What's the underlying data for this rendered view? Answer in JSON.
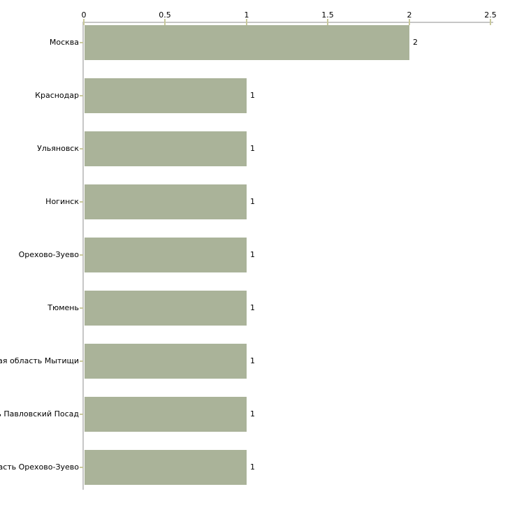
{
  "chart_data": {
    "type": "bar",
    "orientation": "horizontal",
    "title": "",
    "xlabel": "",
    "ylabel": "",
    "grid": "off",
    "legend": "none",
    "axis_position": "top",
    "categories": [
      "Москва",
      "Краснодар",
      "Ульяновск",
      "Ногинск",
      "Орехово-Зуево",
      "Тюмень",
      "Московская область Мытищи",
      "Московская область Павловский Посад",
      "Московская область Орехово-Зуево"
    ],
    "values": [
      2,
      1,
      1,
      1,
      1,
      1,
      1,
      1,
      1
    ],
    "value_labels": [
      "2",
      "1",
      "1",
      "1",
      "1",
      "1",
      "1",
      "1",
      "1"
    ],
    "x_ticks": [
      "0",
      "0.5",
      "1",
      "1.5",
      "2",
      "2.5"
    ],
    "x_tick_values": [
      0,
      0.5,
      1,
      1.5,
      2,
      2.5
    ],
    "xlim": [
      0,
      2.5
    ],
    "colors": {
      "bar": "#aab399",
      "axis_line": "#c6c6c6",
      "tick_mark": "#c9c99c",
      "text": "#000000",
      "background": "#ffffff"
    }
  }
}
